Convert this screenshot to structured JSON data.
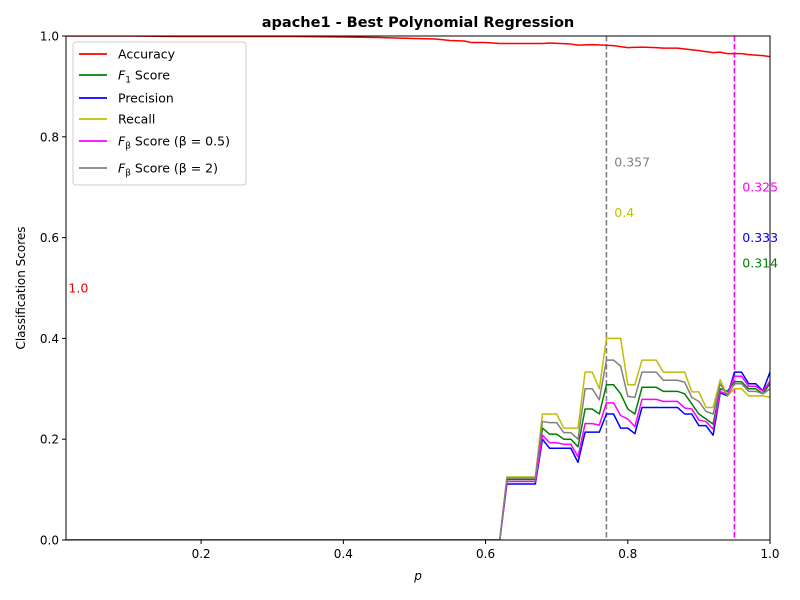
{
  "chart_data": {
    "type": "line",
    "title": "apache1 - Best Polynomial Regression",
    "xlabel": "p",
    "ylabel": "Classification Scores",
    "xlim": [
      0.01,
      1.0
    ],
    "ylim": [
      0.0,
      1.0
    ],
    "xticks": [
      0.2,
      0.4,
      0.6,
      0.8,
      1.0
    ],
    "xtick_labels": [
      "0.2",
      "0.4",
      "0.6",
      "0.8",
      "1.0"
    ],
    "yticks": [
      0.0,
      0.2,
      0.4,
      0.6,
      0.8,
      1.0
    ],
    "ytick_labels": [
      "0.0",
      "0.2",
      "0.4",
      "0.6",
      "0.8",
      "1.0"
    ],
    "grid": false,
    "legend_position": "top-left",
    "series": [
      {
        "name": "Accuracy",
        "legend_main": "Accuracy",
        "legend_sub": "",
        "legend_rest": "",
        "color": "#ff0000",
        "points": [
          [
            0.01,
            1.0
          ],
          [
            0.1,
            1.0
          ],
          [
            0.17,
            0.999
          ],
          [
            0.25,
            0.999
          ],
          [
            0.33,
            0.999
          ],
          [
            0.4,
            0.998
          ],
          [
            0.45,
            0.997
          ],
          [
            0.5,
            0.995
          ],
          [
            0.53,
            0.994
          ],
          [
            0.55,
            0.991
          ],
          [
            0.57,
            0.99
          ],
          [
            0.58,
            0.987
          ],
          [
            0.6,
            0.987
          ],
          [
            0.62,
            0.985
          ],
          [
            0.65,
            0.985
          ],
          [
            0.68,
            0.985
          ],
          [
            0.69,
            0.986
          ],
          [
            0.72,
            0.984
          ],
          [
            0.73,
            0.982
          ],
          [
            0.75,
            0.983
          ],
          [
            0.78,
            0.981
          ],
          [
            0.8,
            0.977
          ],
          [
            0.82,
            0.978
          ],
          [
            0.84,
            0.977
          ],
          [
            0.85,
            0.976
          ],
          [
            0.87,
            0.976
          ],
          [
            0.9,
            0.971
          ],
          [
            0.92,
            0.967
          ],
          [
            0.93,
            0.968
          ],
          [
            0.94,
            0.965
          ],
          [
            0.96,
            0.965
          ],
          [
            0.97,
            0.963
          ],
          [
            0.99,
            0.961
          ],
          [
            1.0,
            0.959
          ]
        ]
      },
      {
        "name": "F1 Score",
        "legend_main": "F",
        "legend_sub": "1",
        "legend_rest": " Score",
        "color": "#008000",
        "points": [
          [
            0.01,
            0.0
          ],
          [
            0.62,
            0.0
          ],
          [
            0.63,
            0.12
          ],
          [
            0.64,
            0.12
          ],
          [
            0.65,
            0.12
          ],
          [
            0.66,
            0.12
          ],
          [
            0.67,
            0.12
          ],
          [
            0.68,
            0.222
          ],
          [
            0.69,
            0.21
          ],
          [
            0.7,
            0.21
          ],
          [
            0.71,
            0.2
          ],
          [
            0.72,
            0.2
          ],
          [
            0.73,
            0.185
          ],
          [
            0.74,
            0.26
          ],
          [
            0.75,
            0.26
          ],
          [
            0.76,
            0.25
          ],
          [
            0.77,
            0.308
          ],
          [
            0.78,
            0.308
          ],
          [
            0.79,
            0.29
          ],
          [
            0.8,
            0.26
          ],
          [
            0.81,
            0.25
          ],
          [
            0.82,
            0.303
          ],
          [
            0.83,
            0.303
          ],
          [
            0.84,
            0.303
          ],
          [
            0.85,
            0.295
          ],
          [
            0.86,
            0.295
          ],
          [
            0.87,
            0.295
          ],
          [
            0.88,
            0.29
          ],
          [
            0.89,
            0.27
          ],
          [
            0.9,
            0.25
          ],
          [
            0.91,
            0.24
          ],
          [
            0.92,
            0.23
          ],
          [
            0.93,
            0.3
          ],
          [
            0.94,
            0.295
          ],
          [
            0.95,
            0.314
          ],
          [
            0.96,
            0.314
          ],
          [
            0.97,
            0.3
          ],
          [
            0.98,
            0.3
          ],
          [
            0.99,
            0.29
          ],
          [
            1.0,
            0.31
          ]
        ]
      },
      {
        "name": "Precision",
        "legend_main": "Precision",
        "legend_sub": "",
        "legend_rest": "",
        "color": "#0000ff",
        "points": [
          [
            0.01,
            0.0
          ],
          [
            0.62,
            0.0
          ],
          [
            0.63,
            0.111
          ],
          [
            0.64,
            0.111
          ],
          [
            0.65,
            0.111
          ],
          [
            0.66,
            0.111
          ],
          [
            0.67,
            0.111
          ],
          [
            0.68,
            0.2
          ],
          [
            0.69,
            0.182
          ],
          [
            0.7,
            0.182
          ],
          [
            0.71,
            0.182
          ],
          [
            0.72,
            0.182
          ],
          [
            0.73,
            0.154
          ],
          [
            0.74,
            0.214
          ],
          [
            0.75,
            0.214
          ],
          [
            0.76,
            0.214
          ],
          [
            0.77,
            0.25
          ],
          [
            0.78,
            0.25
          ],
          [
            0.79,
            0.222
          ],
          [
            0.8,
            0.222
          ],
          [
            0.81,
            0.211
          ],
          [
            0.82,
            0.263
          ],
          [
            0.83,
            0.263
          ],
          [
            0.84,
            0.263
          ],
          [
            0.85,
            0.263
          ],
          [
            0.86,
            0.263
          ],
          [
            0.87,
            0.263
          ],
          [
            0.88,
            0.25
          ],
          [
            0.89,
            0.25
          ],
          [
            0.9,
            0.227
          ],
          [
            0.91,
            0.227
          ],
          [
            0.92,
            0.208
          ],
          [
            0.93,
            0.292
          ],
          [
            0.94,
            0.286
          ],
          [
            0.95,
            0.333
          ],
          [
            0.96,
            0.333
          ],
          [
            0.97,
            0.31
          ],
          [
            0.98,
            0.31
          ],
          [
            0.99,
            0.296
          ],
          [
            1.0,
            0.333
          ]
        ]
      },
      {
        "name": "Recall",
        "legend_main": "Recall",
        "legend_sub": "",
        "legend_rest": "",
        "color": "#bfbf00",
        "points": [
          [
            0.01,
            0.0
          ],
          [
            0.62,
            0.0
          ],
          [
            0.63,
            0.125
          ],
          [
            0.64,
            0.125
          ],
          [
            0.65,
            0.125
          ],
          [
            0.66,
            0.125
          ],
          [
            0.67,
            0.125
          ],
          [
            0.68,
            0.25
          ],
          [
            0.69,
            0.25
          ],
          [
            0.7,
            0.25
          ],
          [
            0.71,
            0.222
          ],
          [
            0.72,
            0.222
          ],
          [
            0.73,
            0.222
          ],
          [
            0.74,
            0.333
          ],
          [
            0.75,
            0.333
          ],
          [
            0.76,
            0.3
          ],
          [
            0.77,
            0.4
          ],
          [
            0.78,
            0.4
          ],
          [
            0.79,
            0.4
          ],
          [
            0.8,
            0.308
          ],
          [
            0.81,
            0.308
          ],
          [
            0.82,
            0.357
          ],
          [
            0.83,
            0.357
          ],
          [
            0.84,
            0.357
          ],
          [
            0.85,
            0.333
          ],
          [
            0.86,
            0.333
          ],
          [
            0.87,
            0.333
          ],
          [
            0.88,
            0.333
          ],
          [
            0.89,
            0.294
          ],
          [
            0.9,
            0.294
          ],
          [
            0.91,
            0.263
          ],
          [
            0.92,
            0.263
          ],
          [
            0.93,
            0.318
          ],
          [
            0.94,
            0.286
          ],
          [
            0.95,
            0.3
          ],
          [
            0.96,
            0.3
          ],
          [
            0.97,
            0.286
          ],
          [
            0.98,
            0.286
          ],
          [
            0.99,
            0.286
          ],
          [
            1.0,
            0.283
          ]
        ]
      },
      {
        "name": "Fβ Score (β=0.5)",
        "legend_main": "F",
        "legend_sub": "β",
        "legend_rest": " Score (β = 0.5)",
        "color": "#ff00ff",
        "points": [
          [
            0.01,
            0.0
          ],
          [
            0.62,
            0.0
          ],
          [
            0.63,
            0.116
          ],
          [
            0.64,
            0.116
          ],
          [
            0.65,
            0.116
          ],
          [
            0.66,
            0.116
          ],
          [
            0.67,
            0.116
          ],
          [
            0.68,
            0.208
          ],
          [
            0.69,
            0.193
          ],
          [
            0.7,
            0.193
          ],
          [
            0.71,
            0.19
          ],
          [
            0.72,
            0.19
          ],
          [
            0.73,
            0.165
          ],
          [
            0.74,
            0.231
          ],
          [
            0.75,
            0.231
          ],
          [
            0.76,
            0.228
          ],
          [
            0.77,
            0.272
          ],
          [
            0.78,
            0.272
          ],
          [
            0.79,
            0.247
          ],
          [
            0.8,
            0.24
          ],
          [
            0.81,
            0.225
          ],
          [
            0.82,
            0.279
          ],
          [
            0.83,
            0.279
          ],
          [
            0.84,
            0.279
          ],
          [
            0.85,
            0.275
          ],
          [
            0.86,
            0.275
          ],
          [
            0.87,
            0.275
          ],
          [
            0.88,
            0.262
          ],
          [
            0.89,
            0.26
          ],
          [
            0.9,
            0.238
          ],
          [
            0.91,
            0.235
          ],
          [
            0.92,
            0.22
          ],
          [
            0.93,
            0.295
          ],
          [
            0.94,
            0.288
          ],
          [
            0.95,
            0.325
          ],
          [
            0.96,
            0.325
          ],
          [
            0.97,
            0.305
          ],
          [
            0.98,
            0.305
          ],
          [
            0.99,
            0.295
          ],
          [
            1.0,
            0.315
          ]
        ]
      },
      {
        "name": "Fβ Score (β=2)",
        "legend_main": "F",
        "legend_sub": "β",
        "legend_rest": " Score (β = 2)",
        "color": "#808080",
        "points": [
          [
            0.01,
            0.0
          ],
          [
            0.62,
            0.0
          ],
          [
            0.63,
            0.123
          ],
          [
            0.64,
            0.123
          ],
          [
            0.65,
            0.123
          ],
          [
            0.66,
            0.123
          ],
          [
            0.67,
            0.123
          ],
          [
            0.68,
            0.235
          ],
          [
            0.69,
            0.233
          ],
          [
            0.7,
            0.233
          ],
          [
            0.71,
            0.213
          ],
          [
            0.72,
            0.213
          ],
          [
            0.73,
            0.2
          ],
          [
            0.74,
            0.3
          ],
          [
            0.75,
            0.3
          ],
          [
            0.76,
            0.278
          ],
          [
            0.77,
            0.357
          ],
          [
            0.78,
            0.357
          ],
          [
            0.79,
            0.345
          ],
          [
            0.8,
            0.285
          ],
          [
            0.81,
            0.283
          ],
          [
            0.82,
            0.333
          ],
          [
            0.83,
            0.333
          ],
          [
            0.84,
            0.333
          ],
          [
            0.85,
            0.317
          ],
          [
            0.86,
            0.317
          ],
          [
            0.87,
            0.317
          ],
          [
            0.88,
            0.313
          ],
          [
            0.89,
            0.283
          ],
          [
            0.9,
            0.275
          ],
          [
            0.91,
            0.255
          ],
          [
            0.92,
            0.25
          ],
          [
            0.93,
            0.31
          ],
          [
            0.94,
            0.286
          ],
          [
            0.95,
            0.31
          ],
          [
            0.96,
            0.31
          ],
          [
            0.97,
            0.295
          ],
          [
            0.98,
            0.295
          ],
          [
            0.99,
            0.29
          ],
          [
            1.0,
            0.3
          ]
        ]
      }
    ],
    "vlines": [
      {
        "x": 0.77,
        "color": "#808080"
      },
      {
        "x": 0.95,
        "color": "#ff00ff"
      }
    ],
    "annotations": [
      {
        "text": "1.0",
        "x": 0.0134,
        "y": 0.5,
        "color": "#ff0000"
      },
      {
        "text": "0.357",
        "x": 0.781,
        "y": 0.75,
        "color": "#808080"
      },
      {
        "text": "0.4",
        "x": 0.781,
        "y": 0.65,
        "color": "#bfbf00"
      },
      {
        "text": "0.325",
        "x": 0.961,
        "y": 0.7,
        "color": "#ff00ff"
      },
      {
        "text": "0.333",
        "x": 0.961,
        "y": 0.6,
        "color": "#0000ff"
      },
      {
        "text": "0.314",
        "x": 0.961,
        "y": 0.55,
        "color": "#008000"
      }
    ]
  }
}
